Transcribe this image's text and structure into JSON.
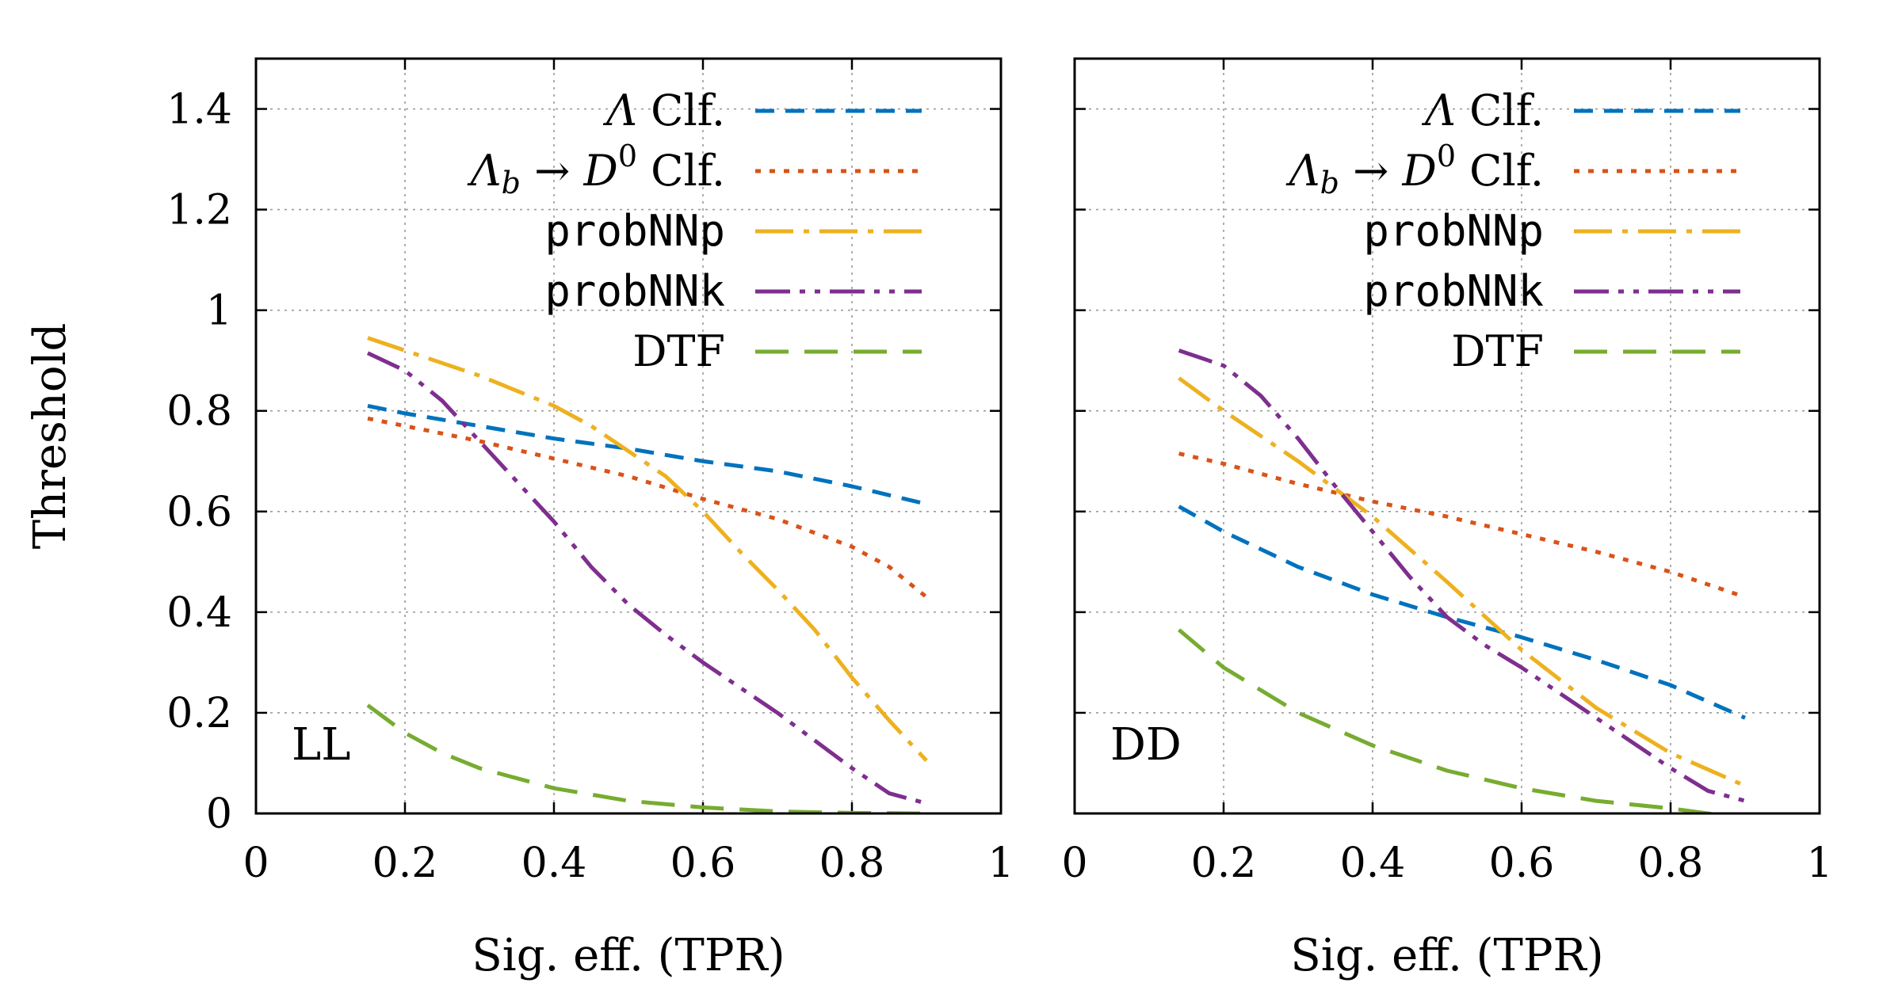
{
  "chart_data": [
    {
      "type": "line",
      "panel_label": "LL",
      "xlabel": "Sig. eff. (TPR)",
      "ylabel": "Threshold",
      "xlim": [
        0,
        1
      ],
      "ylim": [
        0,
        1.5
      ],
      "xticks": [
        0,
        0.2,
        0.4,
        0.6,
        0.8,
        1
      ],
      "xtick_labels": [
        "0",
        "0.2",
        "0.4",
        "0.6",
        "0.8",
        "1"
      ],
      "yticks": [
        0,
        0.2,
        0.4,
        0.6,
        0.8,
        1,
        1.2,
        1.4
      ],
      "ytick_labels": [
        "0",
        "0.2",
        "0.4",
        "0.6",
        "0.8",
        "1",
        "1.2",
        "1.4"
      ],
      "grid": true,
      "legend_position": "top-right",
      "series": [
        {
          "name": "Λ Clf.",
          "color": "#0072bd",
          "style": "dashed",
          "x": [
            0.15,
            0.2,
            0.3,
            0.4,
            0.5,
            0.6,
            0.7,
            0.8,
            0.9
          ],
          "y": [
            0.81,
            0.795,
            0.77,
            0.745,
            0.725,
            0.7,
            0.68,
            0.65,
            0.615
          ]
        },
        {
          "name": "Λb → D0 Clf.",
          "color": "#d95319",
          "style": "dotted",
          "x": [
            0.15,
            0.2,
            0.3,
            0.4,
            0.5,
            0.6,
            0.7,
            0.8,
            0.85,
            0.9
          ],
          "y": [
            0.785,
            0.77,
            0.74,
            0.705,
            0.67,
            0.625,
            0.585,
            0.53,
            0.49,
            0.43
          ]
        },
        {
          "name": "probNNp",
          "color": "#edb120",
          "style": "dash-dot",
          "x": [
            0.15,
            0.2,
            0.3,
            0.4,
            0.45,
            0.5,
            0.55,
            0.6,
            0.65,
            0.7,
            0.75,
            0.8,
            0.85,
            0.9
          ],
          "y": [
            0.945,
            0.92,
            0.87,
            0.81,
            0.77,
            0.72,
            0.67,
            0.6,
            0.52,
            0.445,
            0.365,
            0.27,
            0.185,
            0.105
          ]
        },
        {
          "name": "probNNk",
          "color": "#7e2f8e",
          "style": "dash-dot-dot",
          "x": [
            0.15,
            0.2,
            0.25,
            0.3,
            0.35,
            0.4,
            0.45,
            0.5,
            0.55,
            0.6,
            0.65,
            0.7,
            0.75,
            0.8,
            0.85,
            0.9
          ],
          "y": [
            0.915,
            0.88,
            0.82,
            0.74,
            0.66,
            0.58,
            0.49,
            0.415,
            0.355,
            0.3,
            0.25,
            0.2,
            0.145,
            0.09,
            0.04,
            0.02
          ]
        },
        {
          "name": "DTF",
          "color": "#77ac30",
          "style": "long-dash",
          "x": [
            0.15,
            0.2,
            0.25,
            0.3,
            0.4,
            0.5,
            0.6,
            0.7,
            0.8,
            0.9
          ],
          "y": [
            0.215,
            0.16,
            0.12,
            0.09,
            0.05,
            0.025,
            0.012,
            0.004,
            0.001,
            0.0
          ]
        }
      ]
    },
    {
      "type": "line",
      "panel_label": "DD",
      "xlabel": "Sig. eff. (TPR)",
      "ylabel": "",
      "xlim": [
        0,
        1
      ],
      "ylim": [
        0,
        1.5
      ],
      "xticks": [
        0,
        0.2,
        0.4,
        0.6,
        0.8,
        1
      ],
      "xtick_labels": [
        "0",
        "0.2",
        "0.4",
        "0.6",
        "0.8",
        "1"
      ],
      "yticks": [
        0,
        0.2,
        0.4,
        0.6,
        0.8,
        1,
        1.2,
        1.4
      ],
      "ytick_labels": [],
      "grid": true,
      "legend_position": "top-right",
      "series": [
        {
          "name": "Λ Clf.",
          "color": "#0072bd",
          "style": "dashed",
          "x": [
            0.14,
            0.2,
            0.3,
            0.4,
            0.5,
            0.6,
            0.7,
            0.8,
            0.9
          ],
          "y": [
            0.61,
            0.56,
            0.49,
            0.435,
            0.39,
            0.35,
            0.305,
            0.255,
            0.19
          ]
        },
        {
          "name": "Λb → D0 Clf.",
          "color": "#d95319",
          "style": "dotted",
          "x": [
            0.14,
            0.2,
            0.3,
            0.4,
            0.5,
            0.6,
            0.7,
            0.8,
            0.9
          ],
          "y": [
            0.715,
            0.695,
            0.655,
            0.62,
            0.59,
            0.555,
            0.52,
            0.48,
            0.43
          ]
        },
        {
          "name": "probNNp",
          "color": "#edb120",
          "style": "dash-dot",
          "x": [
            0.14,
            0.2,
            0.3,
            0.4,
            0.5,
            0.6,
            0.7,
            0.8,
            0.9
          ],
          "y": [
            0.865,
            0.8,
            0.7,
            0.59,
            0.46,
            0.325,
            0.21,
            0.12,
            0.055
          ]
        },
        {
          "name": "probNNk",
          "color": "#7e2f8e",
          "style": "dash-dot-dot",
          "x": [
            0.14,
            0.2,
            0.25,
            0.3,
            0.35,
            0.4,
            0.45,
            0.5,
            0.55,
            0.6,
            0.65,
            0.7,
            0.75,
            0.8,
            0.85,
            0.9
          ],
          "y": [
            0.92,
            0.89,
            0.83,
            0.745,
            0.65,
            0.56,
            0.47,
            0.39,
            0.335,
            0.29,
            0.24,
            0.19,
            0.14,
            0.09,
            0.045,
            0.025
          ]
        },
        {
          "name": "DTF",
          "color": "#77ac30",
          "style": "long-dash",
          "x": [
            0.14,
            0.2,
            0.3,
            0.4,
            0.5,
            0.6,
            0.7,
            0.8,
            0.9
          ],
          "y": [
            0.365,
            0.29,
            0.2,
            0.135,
            0.085,
            0.05,
            0.025,
            0.01,
            -0.01
          ]
        }
      ]
    }
  ]
}
